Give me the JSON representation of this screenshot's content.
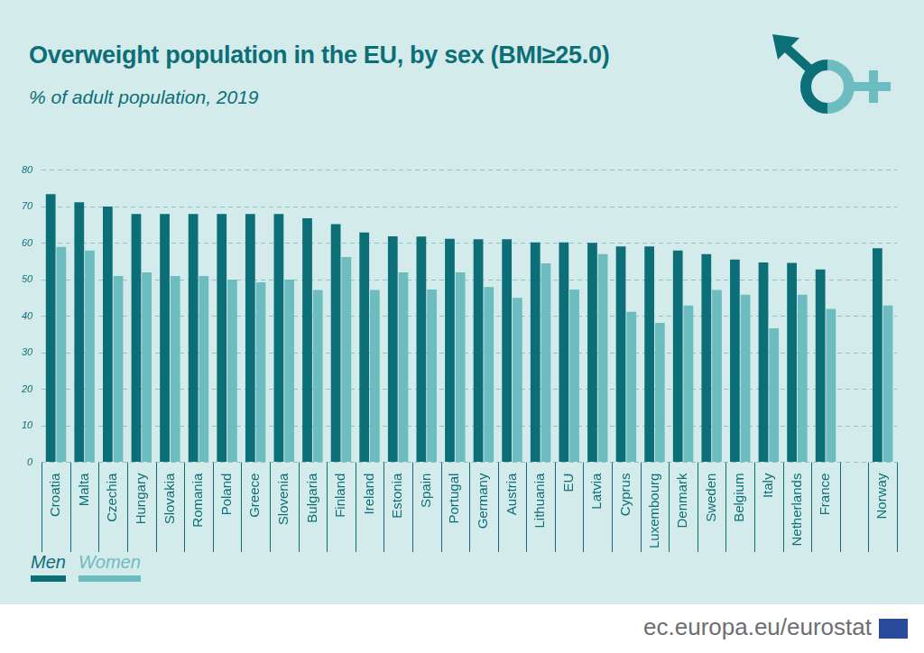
{
  "chart_data": {
    "type": "bar",
    "title": "Overweight population in the EU, by sex (BMI≥25.0)",
    "subtitle": "% of adult population, 2019",
    "categories": [
      "Croatia",
      "Malta",
      "Czechia",
      "Hungary",
      "Slovakia",
      "Romania",
      "Poland",
      "Greece",
      "Slovenia",
      "Bulgaria",
      "Finland",
      "Ireland",
      "Estonia",
      "Spain",
      "Portugal",
      "Germany",
      "Austria",
      "Lithuania",
      "EU",
      "Latvia",
      "Cyprus",
      "Luxembourg",
      "Denmark",
      "Sweden",
      "Belgium",
      "Italy",
      "Netherlands",
      "France",
      null,
      "Norway"
    ],
    "series": [
      {
        "name": "Men",
        "color": "#0c6f78",
        "values": [
          73.4,
          71.2,
          70.0,
          68.0,
          68.0,
          68.0,
          68.0,
          68.0,
          68.0,
          66.8,
          65.2,
          62.9,
          61.9,
          61.8,
          61.2,
          61.1,
          61.1,
          60.2,
          60.2,
          60.1,
          59.1,
          59.1,
          58.0,
          57.0,
          55.5,
          54.7,
          54.6,
          52.8,
          null,
          58.6
        ]
      },
      {
        "name": "Women",
        "color": "#6dbcc0",
        "values": [
          59.0,
          58.0,
          51.0,
          52.0,
          51.0,
          51.0,
          50.0,
          49.3,
          50.0,
          47.2,
          56.2,
          47.2,
          52.0,
          47.3,
          52.0,
          48.0,
          45.0,
          54.5,
          47.3,
          57.0,
          41.2,
          38.2,
          42.9,
          47.2,
          45.9,
          36.7,
          45.9,
          42.0,
          null,
          42.9
        ]
      }
    ],
    "ylim": [
      0,
      80
    ],
    "yticks": [
      0,
      10,
      20,
      30,
      40,
      50,
      60,
      70,
      80
    ],
    "grid": true,
    "legend": "bottom-left",
    "source": "ec.europa.eu/eurostat"
  }
}
